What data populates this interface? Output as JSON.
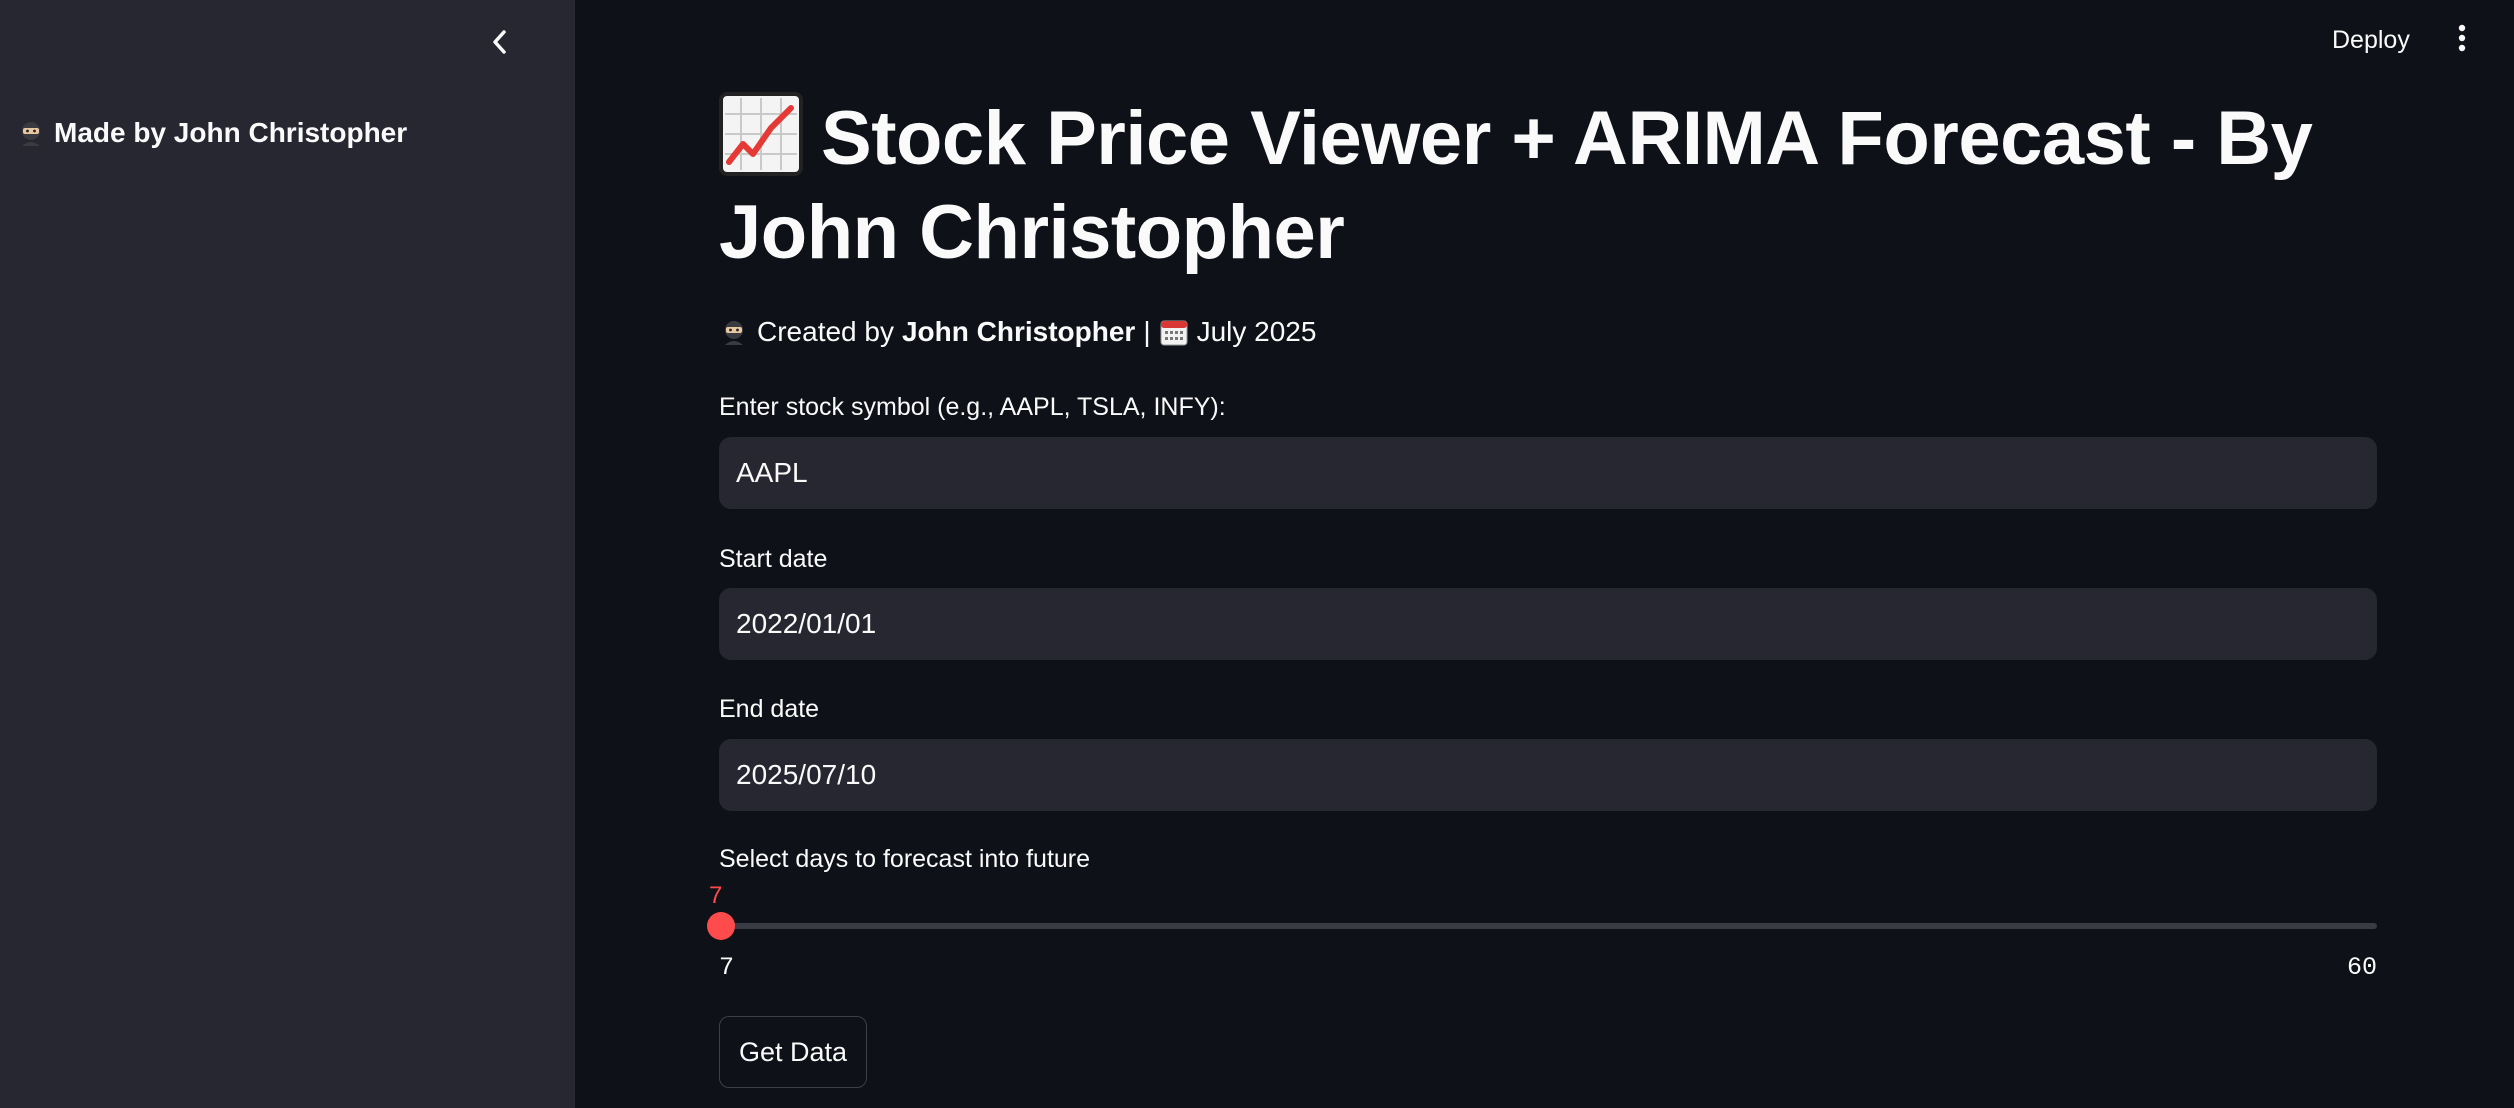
{
  "sidebar": {
    "collapse_icon": "chevron-left-icon",
    "author_icon": "ninja-icon",
    "author_text": "Made by John Christopher"
  },
  "header": {
    "deploy_label": "Deploy",
    "menu_icon": "more-vertical-icon"
  },
  "main": {
    "title_icon": "chart-increasing-icon",
    "title": "Stock Price Viewer + ARIMA Forecast - By John Christopher",
    "subtitle": {
      "author_icon": "ninja-icon",
      "prefix": "Created by",
      "author": "John Christopher",
      "separator": "|",
      "date_icon": "calendar-icon",
      "date": "July 2025"
    },
    "symbol_field": {
      "label": "Enter stock symbol (e.g., AAPL, TSLA, INFY):",
      "value": "AAPL"
    },
    "start_date": {
      "label": "Start date",
      "value": "2022/01/01"
    },
    "end_date": {
      "label": "End date",
      "value": "2025/07/10"
    },
    "forecast_slider": {
      "label": "Select days to forecast into future",
      "value": "7",
      "min": "7",
      "max": "60"
    },
    "get_data_label": "Get Data"
  },
  "colors": {
    "background": "#0e1117",
    "sidebar": "#262730",
    "input_bg": "#262730",
    "accent": "#ff4b4b",
    "text": "#fafafa"
  }
}
